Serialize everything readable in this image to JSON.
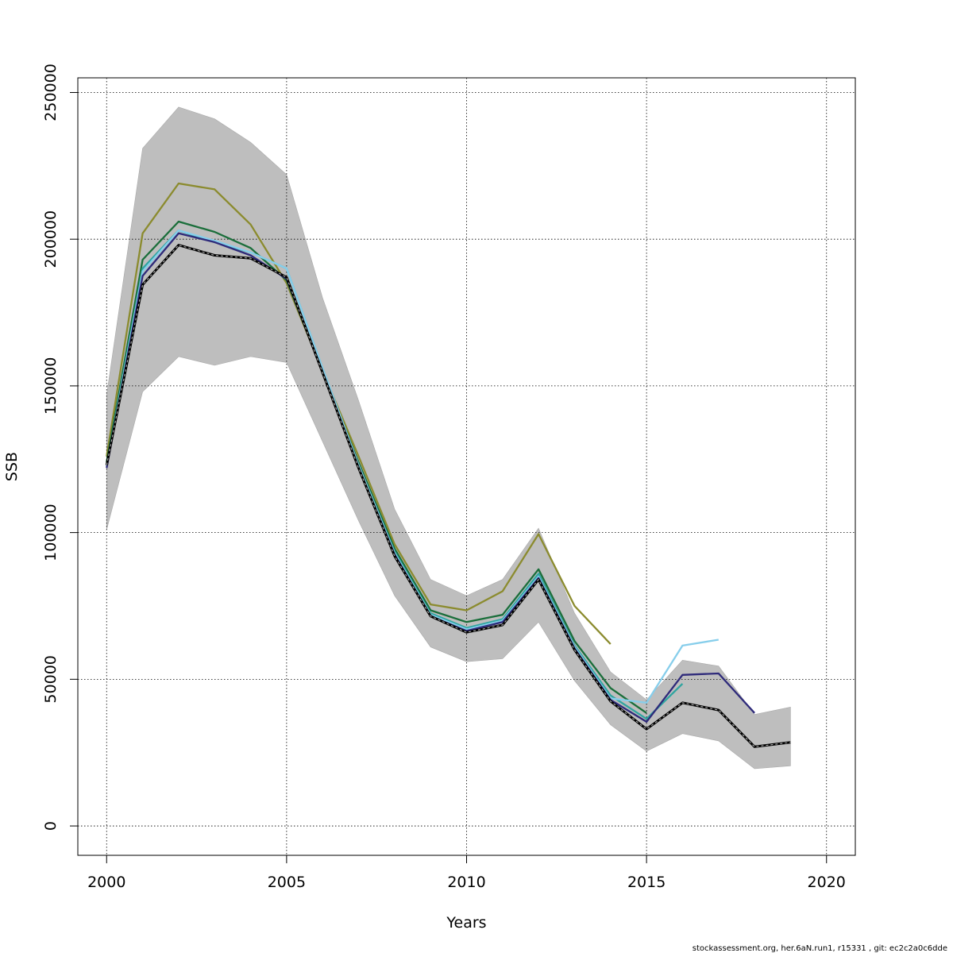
{
  "chart_data": {
    "type": "line",
    "xlabel": "Years",
    "ylabel": "SSB",
    "xlim": [
      1999.2,
      2020.8
    ],
    "ylim": [
      -10000,
      255000
    ],
    "x_ticks": [
      "2000",
      "2005",
      "2010",
      "2015",
      "2020"
    ],
    "y_ticks": [
      "0",
      "50000",
      "100000",
      "150000",
      "200000",
      "250000"
    ],
    "grid": true,
    "footer": "stockassessment.org, her.6aN.run1, r15331 , git: ec2c2a0c6dde",
    "band": {
      "x": [
        2000,
        2001,
        2002,
        2003,
        2004,
        2005,
        2006,
        2007,
        2008,
        2009,
        2010,
        2011,
        2012,
        2013,
        2014,
        2015,
        2016,
        2017,
        2018,
        2019
      ],
      "upper": [
        147000,
        231000,
        245000,
        241000,
        233000,
        222000,
        180000,
        145000,
        108000,
        84000,
        78500,
        84000,
        101500,
        72500,
        52500,
        43000,
        56500,
        54500,
        38000,
        40500
      ],
      "lower": [
        101000,
        148000,
        160000,
        157000,
        160000,
        158000,
        131000,
        104000,
        78500,
        61000,
        56000,
        57000,
        69500,
        49500,
        34500,
        25500,
        31500,
        29000,
        19500,
        20500
      ],
      "color": "#bebebe"
    },
    "series": [
      {
        "color": "#8b8b2e",
        "x": [
          2000,
          2001,
          2002,
          2003,
          2004,
          2005,
          2006,
          2007,
          2008,
          2009,
          2010,
          2011,
          2012,
          2013,
          2014
        ],
        "values": [
          126000,
          202000,
          219000,
          217000,
          205000,
          185000,
          155000,
          126000,
          96000,
          75500,
          73500,
          80000,
          99500,
          75000,
          62000
        ]
      },
      {
        "color": "#1a6e3a",
        "x": [
          2000,
          2001,
          2002,
          2003,
          2004,
          2005,
          2006,
          2007,
          2008,
          2009,
          2010,
          2011,
          2012,
          2013,
          2014,
          2015
        ],
        "values": [
          124000,
          193000,
          206000,
          202500,
          197000,
          186000,
          155000,
          124000,
          94500,
          73500,
          69500,
          72000,
          87500,
          63000,
          47000,
          38500
        ]
      },
      {
        "color": "#2fa5a0",
        "x": [
          2000,
          2001,
          2002,
          2003,
          2004,
          2005,
          2006,
          2007,
          2008,
          2009,
          2010,
          2011,
          2012,
          2013,
          2014,
          2015,
          2016
        ],
        "values": [
          123000,
          190000,
          203000,
          199000,
          195500,
          190000,
          156000,
          123000,
          93500,
          72500,
          67500,
          70500,
          86000,
          61500,
          44500,
          36500,
          48500
        ]
      },
      {
        "color": "#87ceeb",
        "x": [
          2000,
          2001,
          2002,
          2003,
          2004,
          2005,
          2006,
          2007,
          2008,
          2009,
          2010,
          2011,
          2012,
          2013,
          2014,
          2015,
          2016,
          2017
        ],
        "values": [
          122500,
          189000,
          203000,
          199500,
          195500,
          190000,
          156000,
          123000,
          93000,
          72000,
          67000,
          70000,
          85000,
          61000,
          43500,
          42000,
          61500,
          63500
        ]
      },
      {
        "color": "#2e2a7a",
        "x": [
          2000,
          2001,
          2002,
          2003,
          2004,
          2005,
          2006,
          2007,
          2008,
          2009,
          2010,
          2011,
          2012,
          2013,
          2014,
          2015,
          2016,
          2017,
          2018
        ],
        "values": [
          122000,
          187500,
          202000,
          199000,
          194500,
          186500,
          154500,
          122000,
          92500,
          71500,
          66500,
          69500,
          84500,
          60500,
          43000,
          35500,
          51500,
          52000,
          38500
        ]
      },
      {
        "color": "#000000",
        "dashed": true,
        "x": [
          2000,
          2001,
          2002,
          2003,
          2004,
          2005,
          2006,
          2007,
          2008,
          2009,
          2010,
          2011,
          2012,
          2013,
          2014,
          2015,
          2016,
          2017,
          2018,
          2019
        ],
        "values": [
          123000,
          184500,
          198000,
          194500,
          193500,
          187000,
          154500,
          122000,
          92000,
          71500,
          66000,
          68500,
          84000,
          60000,
          42500,
          33000,
          42000,
          39500,
          27000,
          28500
        ]
      }
    ]
  }
}
